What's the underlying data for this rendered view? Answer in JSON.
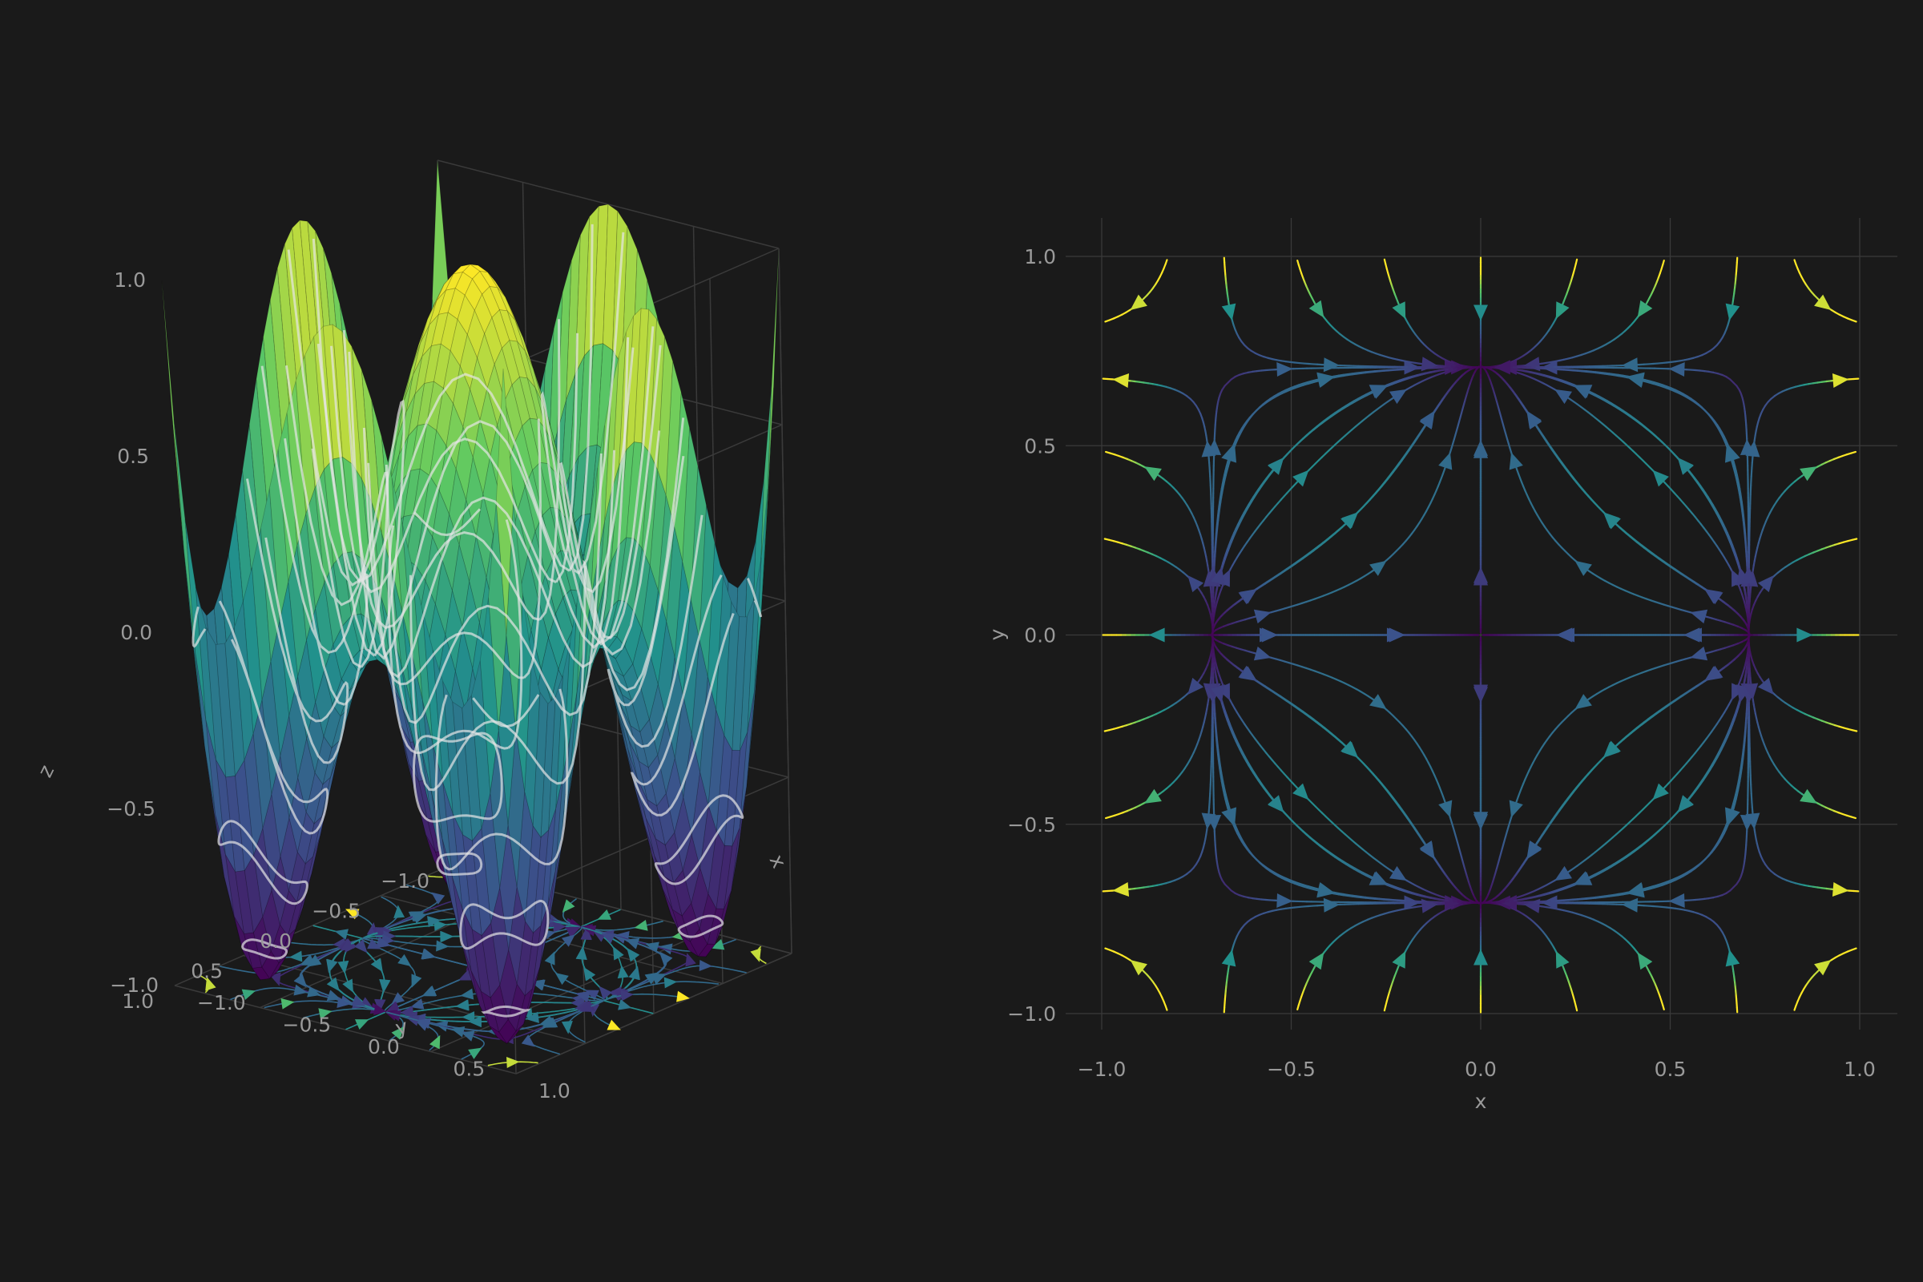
{
  "chart_data": [
    {
      "type": "surface",
      "panel": "left",
      "function": "z = x^4 + y^4 - x^2 - y^2 (normalized)",
      "xlabel": "x",
      "ylabel": "y",
      "zlabel": "z",
      "xlim": [
        -1.0,
        1.0
      ],
      "ylim": [
        -1.0,
        1.0
      ],
      "zlim": [
        -1.0,
        1.0
      ],
      "x_ticks": [
        "−1.0",
        "−0.5",
        "0.0",
        "0.5",
        "1.0"
      ],
      "y_ticks": [
        "−1.0",
        "−0.5",
        "0.0",
        "0.5",
        "1.0"
      ],
      "z_ticks": [
        "−1.0",
        "−0.5",
        "0.0",
        "0.5",
        "1.0"
      ],
      "colormap": "viridis",
      "contour_color": "#e6e6e6",
      "grid": true
    },
    {
      "type": "streamplot",
      "panel": "right",
      "vector_field": "u = 4x^3 - 2x, v = 2y - 4y^3",
      "xlabel": "x",
      "ylabel": "y",
      "xlim": [
        -1.0,
        1.0
      ],
      "ylim": [
        -1.0,
        1.0
      ],
      "x_ticks": [
        -1.0,
        -0.5,
        0.0,
        0.5,
        1.0
      ],
      "y_ticks": [
        -1.0,
        -0.5,
        0.0,
        0.5,
        1.0
      ],
      "x_tick_labels": [
        "−1.0",
        "−0.5",
        "0.0",
        "0.5",
        "1.0"
      ],
      "y_tick_labels": [
        "−1.0",
        "−0.5",
        "0.0",
        "0.5",
        "1.0"
      ],
      "colormap": "viridis",
      "color_by": "speed",
      "grid": true
    }
  ],
  "colors": {
    "background": "#1a1a1a",
    "grid": "#3a3a3a",
    "text": "#9a9a9a",
    "viridis": [
      "#440154",
      "#3b528b",
      "#21918c",
      "#5ec962",
      "#fde725"
    ]
  }
}
